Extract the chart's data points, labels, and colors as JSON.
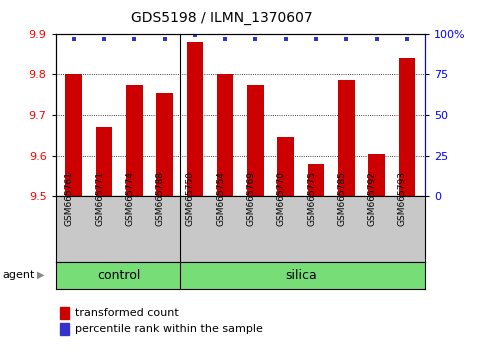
{
  "title": "GDS5198 / ILMN_1370607",
  "samples": [
    "GSM665761",
    "GSM665771",
    "GSM665774",
    "GSM665788",
    "GSM665750",
    "GSM665754",
    "GSM665769",
    "GSM665770",
    "GSM665775",
    "GSM665785",
    "GSM665792",
    "GSM665793"
  ],
  "transformed_count": [
    9.8,
    9.67,
    9.775,
    9.755,
    9.88,
    9.8,
    9.775,
    9.645,
    9.58,
    9.785,
    9.605,
    9.84
  ],
  "percentile_rank": [
    97,
    97,
    97,
    97,
    99,
    97,
    97,
    97,
    97,
    97,
    97,
    97
  ],
  "ylim_left": [
    9.5,
    9.9
  ],
  "ylim_right": [
    0,
    100
  ],
  "yticks_left": [
    9.5,
    9.6,
    9.7,
    9.8,
    9.9
  ],
  "yticks_right": [
    0,
    25,
    50,
    75,
    100
  ],
  "ytick_labels_right": [
    "0",
    "25",
    "50",
    "75",
    "100%"
  ],
  "bar_color": "#CC0000",
  "dot_color": "#3333CC",
  "bar_width": 0.55,
  "control_count": 4,
  "grid_yticks": [
    9.6,
    9.7,
    9.8
  ],
  "legend_labels": [
    "transformed count",
    "percentile rank within the sample"
  ],
  "agent_label": "agent",
  "xlabel_control": "control",
  "xlabel_silica": "silica",
  "gray_color": "#C8C8C8",
  "green_color": "#77DD77",
  "fig_width": 4.83,
  "fig_height": 3.54,
  "dpi": 100
}
